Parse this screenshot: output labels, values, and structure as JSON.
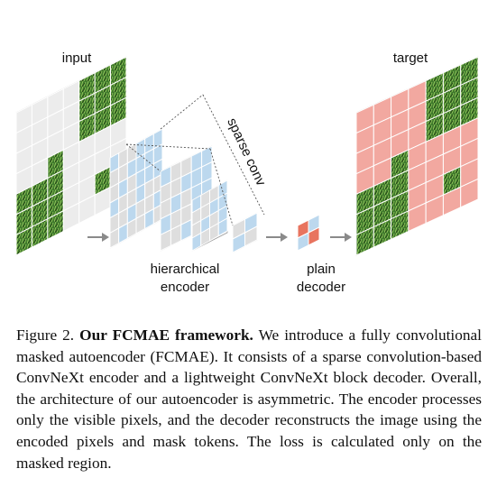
{
  "figure": {
    "labels": {
      "input": "input",
      "target": "target",
      "sparse_conv": "sparse conv",
      "encoder_line1": "hierarchical",
      "encoder_line2": "encoder",
      "decoder_line1": "plain",
      "decoder_line2": "decoder"
    },
    "colors": {
      "visible_patch": "#3f7a2c",
      "masked_patch": "#ececec",
      "feature_blue": "#bcd8ee",
      "feature_gray": "#dedede",
      "decoder_red": "#e8745f",
      "target_overlay": "#f2a8a0",
      "arrow": "#8a8a8a"
    }
  },
  "caption": {
    "label": "Figure 2.",
    "title": "Our FCMAE framework.",
    "body": "We introduce a fully convolutional masked autoencoder (FCMAE). It consists of a sparse convolution-based ConvNeXt encoder and a lightweight ConvNeXt block decoder. Overall, the architecture of our autoencoder is asymmetric. The encoder processes only the visible pixels, and the decoder reconstructs the image using the encoded pixels and mask tokens. The loss is calculated only on the masked region."
  }
}
